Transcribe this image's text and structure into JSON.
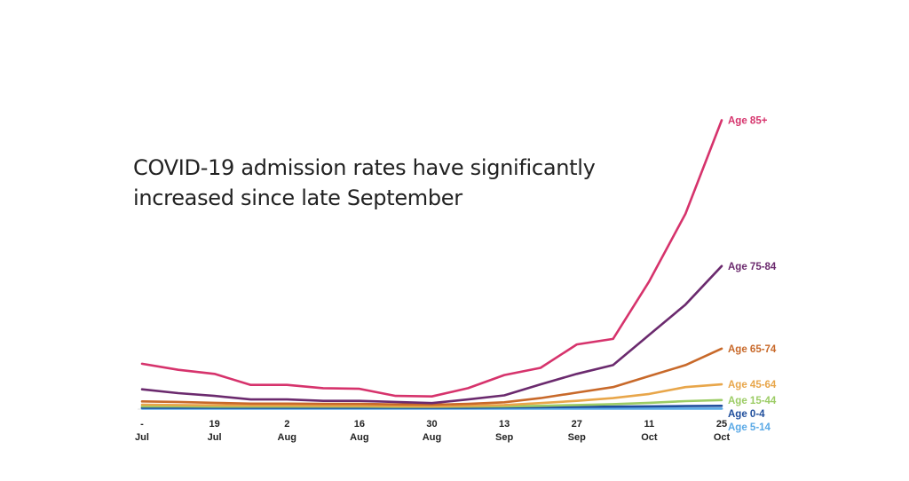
{
  "headline": {
    "line1": "COVID-19 admission rates have significantly",
    "line2": "increased since late September"
  },
  "chart_data": {
    "type": "line",
    "xlabel": "",
    "ylabel": "",
    "ylim": [
      0,
      100
    ],
    "grid": false,
    "legend": "inline labels at line ends (right)",
    "x_ticks": [
      {
        "day": "-",
        "month": "Jul"
      },
      {
        "day": "19",
        "month": "Jul"
      },
      {
        "day": "2",
        "month": "Aug"
      },
      {
        "day": "16",
        "month": "Aug"
      },
      {
        "day": "30",
        "month": "Aug"
      },
      {
        "day": "13",
        "month": "Sep"
      },
      {
        "day": "27",
        "month": "Sep"
      },
      {
        "day": "11",
        "month": "Oct"
      },
      {
        "day": "25",
        "month": "Oct"
      }
    ],
    "x": [
      "5 Jul",
      "12 Jul",
      "19 Jul",
      "26 Jul",
      "2 Aug",
      "9 Aug",
      "16 Aug",
      "23 Aug",
      "30 Aug",
      "6 Sep",
      "13 Sep",
      "20 Sep",
      "27 Sep",
      "4 Oct",
      "11 Oct",
      "18 Oct",
      "25 Oct"
    ],
    "series": [
      {
        "name": "Age 85+",
        "color": "#d6336c",
        "values": [
          16.5,
          14.3,
          12.8,
          8.8,
          8.8,
          7.6,
          7.4,
          4.8,
          4.6,
          7.6,
          12.4,
          15.0,
          23.5,
          25.5,
          46.5,
          71.0,
          105.0
        ]
      },
      {
        "name": "Age 75-84",
        "color": "#6b2a6e",
        "values": [
          7.2,
          5.8,
          4.8,
          3.5,
          3.5,
          3.0,
          3.0,
          2.6,
          2.2,
          3.5,
          5.0,
          9.0,
          12.8,
          16.0,
          27.0,
          38.0,
          52.0
        ]
      },
      {
        "name": "Age 65-74",
        "color": "#c8692a",
        "values": [
          2.8,
          2.6,
          2.3,
          2.0,
          2.0,
          1.9,
          1.9,
          1.7,
          1.6,
          1.9,
          2.5,
          4.0,
          6.0,
          8.0,
          12.0,
          16.0,
          22.0
        ]
      },
      {
        "name": "Age 45-64",
        "color": "#e8a64a",
        "values": [
          1.6,
          1.5,
          1.4,
          1.3,
          1.3,
          1.2,
          1.2,
          1.1,
          1.0,
          1.2,
          1.5,
          2.2,
          3.0,
          4.0,
          5.5,
          8.0,
          9.0
        ]
      },
      {
        "name": "Age 15-44",
        "color": "#9ccc65",
        "values": [
          1.0,
          1.0,
          0.9,
          0.9,
          0.9,
          0.9,
          0.9,
          0.8,
          0.8,
          0.9,
          1.0,
          1.2,
          1.5,
          1.8,
          2.3,
          2.9,
          3.3
        ]
      },
      {
        "name": "Age 0-4",
        "color": "#1f4e9c",
        "values": [
          0.5,
          0.5,
          0.5,
          0.5,
          0.5,
          0.5,
          0.5,
          0.5,
          0.5,
          0.5,
          0.6,
          0.7,
          0.8,
          0.9,
          1.0,
          1.1,
          1.2
        ]
      },
      {
        "name": "Age 5-14",
        "color": "#5aa9e6",
        "values": [
          0.2,
          0.2,
          0.2,
          0.2,
          0.2,
          0.2,
          0.2,
          0.2,
          0.2,
          0.2,
          0.2,
          0.2,
          0.2,
          0.2,
          0.2,
          0.2,
          0.2
        ]
      }
    ]
  }
}
